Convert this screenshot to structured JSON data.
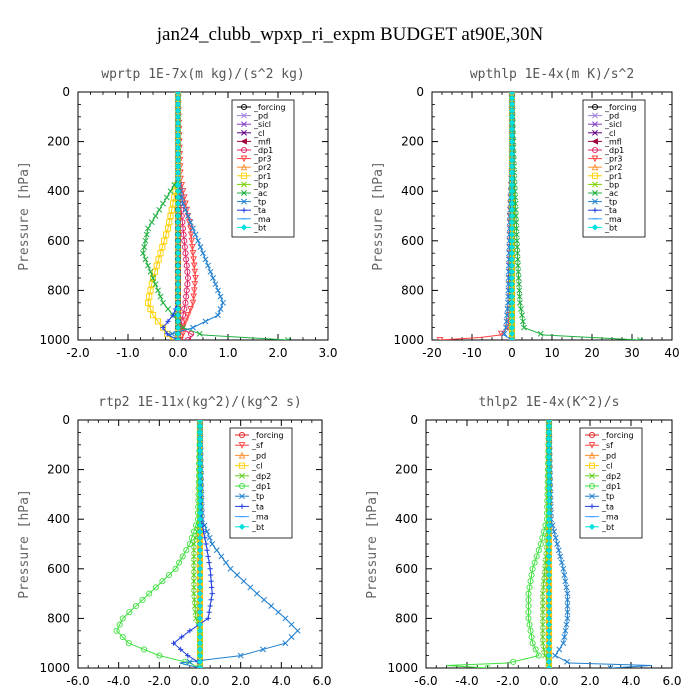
{
  "figure_title": "jan24_clubb_wpxp_ri_expm  BUDGET at90E,30N",
  "chart_data": [
    {
      "type": "line",
      "title": "wprtp  1E-7x(m kg)/(s^2 kg)",
      "ylabel": "Pressure [hPa]",
      "xlim": [
        -2.0,
        3.0
      ],
      "ylim": [
        1000,
        0
      ],
      "xticks": [
        "-2.0",
        "-1.0",
        "0.0",
        "1.0",
        "2.0",
        "3.0"
      ],
      "yticks": [
        "0",
        "200",
        "400",
        "600",
        "800",
        "1000"
      ],
      "y": [
        0,
        350,
        450,
        550,
        650,
        750,
        850,
        900,
        950,
        980,
        1000
      ],
      "series": [
        {
          "name": "_forcing",
          "color": "#000000",
          "marker": "o",
          "values": [
            0,
            0,
            0,
            0,
            0,
            0,
            0,
            0,
            0,
            0,
            0
          ]
        },
        {
          "name": "_pd",
          "color": "#a080e0",
          "marker": "x",
          "values": [
            0,
            0,
            0,
            0,
            0,
            0,
            0,
            0,
            0,
            0,
            0
          ]
        },
        {
          "name": "_sicl",
          "color": "#8040c0",
          "marker": "x",
          "values": [
            0,
            0,
            0,
            0,
            0,
            0,
            0,
            0,
            0,
            0,
            0
          ]
        },
        {
          "name": "_cl",
          "color": "#600080",
          "marker": "x",
          "values": [
            0,
            0,
            0,
            0,
            0,
            0,
            0,
            0,
            0,
            0,
            0
          ]
        },
        {
          "name": "_mfl",
          "color": "#a00040",
          "marker": "<",
          "values": [
            0,
            0,
            0,
            0,
            0,
            0,
            0,
            0,
            0,
            0,
            0
          ]
        },
        {
          "name": "_dp1",
          "color": "#e02060",
          "marker": "o",
          "values": [
            0,
            0,
            0.05,
            0.1,
            0.15,
            0.2,
            0.15,
            0.1,
            0.05,
            0.3,
            0.2
          ]
        },
        {
          "name": "_pr3",
          "color": "#ff4040",
          "marker": "v",
          "values": [
            0,
            0.05,
            0.15,
            0.25,
            0.3,
            0.35,
            0.3,
            0.2,
            0.1,
            0.1,
            0.05
          ]
        },
        {
          "name": "_pr2",
          "color": "#ff9030",
          "marker": "^",
          "values": [
            0,
            0,
            0,
            0,
            0,
            0,
            0,
            0,
            0,
            0,
            0
          ]
        },
        {
          "name": "_pr1",
          "color": "#ffd000",
          "marker": "s",
          "values": [
            0,
            0,
            -0.1,
            -0.2,
            -0.35,
            -0.5,
            -0.6,
            -0.5,
            -0.3,
            -0.2,
            -0.1
          ]
        },
        {
          "name": "_bp",
          "color": "#80d000",
          "marker": "x",
          "values": [
            0,
            0,
            0,
            0,
            0,
            0,
            0,
            0,
            0,
            0,
            0
          ]
        },
        {
          "name": "_ac",
          "color": "#20b040",
          "marker": "x",
          "values": [
            0,
            0,
            -0.3,
            -0.6,
            -0.7,
            -0.5,
            -0.3,
            -0.1,
            0.1,
            0.5,
            2.2
          ]
        },
        {
          "name": "_tp",
          "color": "#2080d0",
          "marker": "x",
          "values": [
            0,
            0,
            0.1,
            0.3,
            0.5,
            0.7,
            0.9,
            0.8,
            0.3,
            -0.2,
            0
          ]
        },
        {
          "name": "_ta",
          "color": "#2040e0",
          "marker": "+",
          "values": [
            0,
            0,
            0,
            0,
            0,
            0,
            0,
            -0.1,
            -0.3,
            -0.2,
            0
          ]
        },
        {
          "name": "_ma",
          "color": "#40a0ff",
          "marker": "-",
          "values": [
            0,
            0,
            0,
            0,
            0,
            0,
            0,
            0,
            0,
            0,
            0
          ]
        },
        {
          "name": "_bt",
          "color": "#00e0e0",
          "marker": "D",
          "values": [
            0,
            0,
            0,
            0,
            0,
            0,
            0,
            0,
            0,
            0,
            0
          ]
        }
      ]
    },
    {
      "type": "line",
      "title": "wpthlp  1E-4x(m K)/s^2",
      "ylabel": "Pressure [hPa]",
      "xlim": [
        -20,
        40
      ],
      "ylim": [
        1000,
        0
      ],
      "xticks": [
        "-20",
        "-10",
        "0",
        "10",
        "20",
        "30",
        "40"
      ],
      "yticks": [
        "0",
        "200",
        "400",
        "600",
        "800",
        "1000"
      ],
      "y": [
        0,
        300,
        500,
        700,
        850,
        950,
        980,
        990,
        1000
      ],
      "series": [
        {
          "name": "_forcing",
          "color": "#000000",
          "marker": "o",
          "values": [
            0,
            0,
            0,
            0,
            0,
            0,
            0,
            0,
            0
          ]
        },
        {
          "name": "_pd",
          "color": "#a080e0",
          "marker": "x",
          "values": [
            0,
            0,
            0,
            0,
            0,
            0,
            0,
            0,
            0
          ]
        },
        {
          "name": "_sicl",
          "color": "#8040c0",
          "marker": "x",
          "values": [
            0,
            0,
            0,
            0,
            0,
            0,
            0,
            0,
            0
          ]
        },
        {
          "name": "_cl",
          "color": "#600080",
          "marker": "x",
          "values": [
            0,
            0,
            0,
            0,
            0,
            0,
            0,
            0,
            0
          ]
        },
        {
          "name": "_mfl",
          "color": "#a00040",
          "marker": "<",
          "values": [
            0,
            0,
            0,
            0,
            0,
            0,
            0,
            0,
            0
          ]
        },
        {
          "name": "_dp1",
          "color": "#e02060",
          "marker": "o",
          "values": [
            0,
            0,
            0,
            0,
            0,
            0,
            0,
            0,
            0
          ]
        },
        {
          "name": "_pr3",
          "color": "#ff4040",
          "marker": "v",
          "values": [
            0,
            0,
            -0.5,
            -0.5,
            -0.5,
            -1,
            -3,
            -8,
            -18
          ]
        },
        {
          "name": "_pr2",
          "color": "#ff9030",
          "marker": "^",
          "values": [
            0,
            0,
            0,
            0,
            0,
            0,
            0,
            0,
            0
          ]
        },
        {
          "name": "_pr1",
          "color": "#ffd000",
          "marker": "s",
          "values": [
            0,
            0,
            0,
            0,
            0,
            0,
            0,
            0,
            0
          ]
        },
        {
          "name": "_bp",
          "color": "#80d000",
          "marker": "x",
          "values": [
            0,
            0,
            0,
            0,
            0,
            0,
            0,
            0,
            0
          ]
        },
        {
          "name": "_ac",
          "color": "#20b040",
          "marker": "x",
          "values": [
            0,
            0.5,
            1,
            1.5,
            2,
            3,
            8,
            20,
            32
          ]
        },
        {
          "name": "_tp",
          "color": "#2080d0",
          "marker": "x",
          "values": [
            0,
            0,
            -0.5,
            -0.8,
            -1,
            -1.5,
            -2,
            -1,
            0
          ]
        },
        {
          "name": "_ta",
          "color": "#2040e0",
          "marker": "+",
          "values": [
            0,
            0,
            0,
            0,
            0,
            0,
            0,
            0,
            0
          ]
        },
        {
          "name": "_ma",
          "color": "#40a0ff",
          "marker": "-",
          "values": [
            0,
            0,
            0,
            0,
            0,
            0,
            0,
            0,
            0
          ]
        },
        {
          "name": "_bt",
          "color": "#00e0e0",
          "marker": "D",
          "values": [
            0,
            0,
            0,
            0,
            0,
            0,
            0,
            0,
            0
          ]
        }
      ]
    },
    {
      "type": "line",
      "title": "rtp2  1E-11x(kg^2)/(kg^2 s)",
      "ylabel": "Pressure [hPa]",
      "xlim": [
        -6.0,
        6.0
      ],
      "ylim": [
        1000,
        0
      ],
      "xticks": [
        "-6.0",
        "-4.0",
        "-2.0",
        "0.0",
        "2.0",
        "4.0",
        "6.0"
      ],
      "yticks": [
        "0",
        "200",
        "400",
        "600",
        "800",
        "1000"
      ],
      "y": [
        0,
        400,
        500,
        600,
        700,
        800,
        850,
        900,
        950,
        980,
        1000
      ],
      "series": [
        {
          "name": "_forcing",
          "color": "#e02020",
          "marker": "o",
          "values": [
            0,
            0,
            0,
            0,
            0,
            0,
            0,
            0,
            0,
            0,
            0
          ]
        },
        {
          "name": "_sf",
          "color": "#ff4040",
          "marker": "v",
          "values": [
            0,
            0,
            0,
            0,
            0,
            0,
            0,
            0,
            0,
            0,
            0
          ]
        },
        {
          "name": "_pd",
          "color": "#ff9030",
          "marker": "^",
          "values": [
            0,
            0,
            0,
            0,
            0,
            0,
            0,
            0,
            0,
            0,
            0
          ]
        },
        {
          "name": "_cl",
          "color": "#ffd000",
          "marker": "s",
          "values": [
            0,
            0,
            0,
            0,
            0,
            0,
            0,
            0,
            0,
            0,
            0
          ]
        },
        {
          "name": "_dp2",
          "color": "#60d020",
          "marker": "x",
          "values": [
            0,
            0,
            -0.3,
            -0.3,
            -0.3,
            -0.2,
            0,
            0,
            0,
            0,
            0
          ]
        },
        {
          "name": "_dp1",
          "color": "#40e040",
          "marker": "o",
          "values": [
            0,
            -0.1,
            -0.5,
            -1.2,
            -2.5,
            -3.8,
            -4.1,
            -3.5,
            -2,
            -0.5,
            0
          ]
        },
        {
          "name": "_tp",
          "color": "#2080d0",
          "marker": "x",
          "values": [
            0,
            0.1,
            0.6,
            1.5,
            2.8,
            4.2,
            4.8,
            4.2,
            2,
            -1,
            0
          ]
        },
        {
          "name": "_ta",
          "color": "#2040e0",
          "marker": "+",
          "values": [
            0,
            0.05,
            0.3,
            0.5,
            0.6,
            0.4,
            -0.5,
            -1.3,
            -0.6,
            0,
            0
          ]
        },
        {
          "name": "_ma",
          "color": "#40a0ff",
          "marker": "-",
          "values": [
            0,
            0,
            0,
            0,
            0,
            0,
            0,
            0,
            0,
            0,
            0
          ]
        },
        {
          "name": "_bt",
          "color": "#00e0e0",
          "marker": "D",
          "values": [
            0,
            0,
            0,
            0,
            0,
            0,
            0,
            0,
            0,
            0,
            0
          ]
        }
      ]
    },
    {
      "type": "line",
      "title": "thlp2  1E-4x(K^2)/s",
      "ylabel": "Pressure [hPa]",
      "xlim": [
        -6.0,
        6.0
      ],
      "ylim": [
        1000,
        0
      ],
      "xticks": [
        "-6.0",
        "-4.0",
        "-2.0",
        "0.0",
        "2.0",
        "4.0",
        "6.0"
      ],
      "yticks": [
        "0",
        "200",
        "400",
        "600",
        "800",
        "1000"
      ],
      "y": [
        0,
        400,
        500,
        600,
        700,
        800,
        900,
        950,
        980,
        990,
        1000
      ],
      "series": [
        {
          "name": "_forcing",
          "color": "#e02020",
          "marker": "o",
          "values": [
            0,
            0,
            0,
            0,
            0,
            0,
            0,
            0,
            0,
            0,
            0
          ]
        },
        {
          "name": "_sf",
          "color": "#ff4040",
          "marker": "v",
          "values": [
            0,
            0,
            0,
            0,
            0,
            0,
            0,
            0,
            0,
            0,
            0
          ]
        },
        {
          "name": "_pd",
          "color": "#ff9030",
          "marker": "^",
          "values": [
            0,
            0,
            0,
            0,
            0,
            0,
            0,
            0,
            0,
            0,
            0
          ]
        },
        {
          "name": "_cl",
          "color": "#ffd000",
          "marker": "s",
          "values": [
            0,
            0,
            0,
            0,
            0,
            0,
            0,
            0,
            0,
            0,
            0
          ]
        },
        {
          "name": "_dp2",
          "color": "#60d020",
          "marker": "x",
          "values": [
            0,
            0,
            -0.1,
            -0.2,
            -0.3,
            -0.3,
            -0.3,
            -0.2,
            0,
            0,
            0
          ]
        },
        {
          "name": "_dp1",
          "color": "#40e040",
          "marker": "o",
          "values": [
            0,
            -0.1,
            -0.4,
            -0.8,
            -1.0,
            -1.0,
            -0.8,
            -0.5,
            -2,
            -5,
            -3
          ]
        },
        {
          "name": "_tp",
          "color": "#2080d0",
          "marker": "x",
          "values": [
            0,
            0.1,
            0.4,
            0.7,
            0.9,
            0.9,
            0.7,
            0.3,
            1,
            5,
            3
          ]
        },
        {
          "name": "_ta",
          "color": "#2040e0",
          "marker": "+",
          "values": [
            0,
            0,
            0,
            0,
            0,
            0,
            0,
            0,
            0,
            0,
            0
          ]
        },
        {
          "name": "_ma",
          "color": "#40a0ff",
          "marker": "-",
          "values": [
            0,
            0,
            0,
            0,
            0,
            0,
            0,
            0,
            0,
            0,
            0
          ]
        },
        {
          "name": "_bt",
          "color": "#00e0e0",
          "marker": "D",
          "values": [
            0,
            0,
            0,
            0,
            0,
            0,
            0,
            0,
            0,
            0,
            0
          ]
        }
      ]
    }
  ]
}
